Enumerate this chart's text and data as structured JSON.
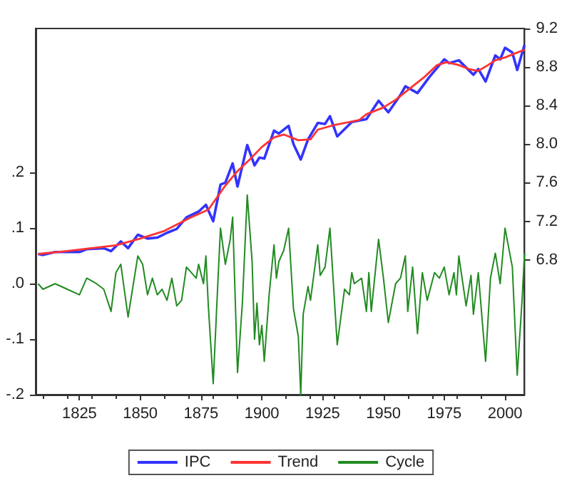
{
  "chart_data": {
    "type": "line",
    "xlim": [
      1807,
      2008
    ],
    "xticks": [
      1825,
      1850,
      1875,
      1900,
      1925,
      1950,
      1975,
      2000
    ],
    "ylim": [
      -0.2,
      0.46
    ],
    "yticks": [
      {
        "value": -0.2,
        "label": "-.2"
      },
      {
        "value": -0.1,
        "label": "-.1"
      },
      {
        "value": 0,
        "label": ".0"
      },
      {
        "value": 0.1,
        "label": ".1"
      },
      {
        "value": 0.2,
        "label": ".2"
      }
    ],
    "y2lim": [
      5.4,
      9.2
    ],
    "y2ticks": [
      6.8,
      7.2,
      7.6,
      {
        "value": 8,
        "label": "8.0"
      },
      8.4,
      8.8,
      9.2
    ],
    "grid": false,
    "legend": "bottom",
    "series": [
      {
        "name": "IPC",
        "color": "#3333ff",
        "axis": "y2",
        "x": [
          1808,
          1810,
          1815,
          1820,
          1825,
          1828,
          1835,
          1838,
          1842,
          1845,
          1849,
          1853,
          1857,
          1861,
          1865,
          1869,
          1874,
          1877,
          1880,
          1883,
          1885,
          1888,
          1890,
          1894,
          1897,
          1899,
          1901,
          1905,
          1907,
          1911,
          1913,
          1916,
          1919,
          1923,
          1926,
          1928,
          1931,
          1937,
          1943,
          1948,
          1952,
          1957,
          1959,
          1964,
          1969,
          1975,
          1977,
          1981,
          1987,
          1989,
          1992,
          1996,
          1998,
          2000,
          2003,
          2005,
          2008
        ],
        "values": [
          6.86,
          6.85,
          6.88,
          6.88,
          6.88,
          6.91,
          6.92,
          6.89,
          6.99,
          6.92,
          7.06,
          7.02,
          7.03,
          7.08,
          7.12,
          7.24,
          7.3,
          7.37,
          7.2,
          7.58,
          7.6,
          7.8,
          7.56,
          7.99,
          7.78,
          7.86,
          7.85,
          8.14,
          8.11,
          8.19,
          8.0,
          7.84,
          8.05,
          8.22,
          8.21,
          8.29,
          8.08,
          8.23,
          8.26,
          8.45,
          8.33,
          8.51,
          8.6,
          8.53,
          8.7,
          8.88,
          8.84,
          8.87,
          8.72,
          8.78,
          8.65,
          8.92,
          8.88,
          9.0,
          8.95,
          8.77,
          9.03
        ]
      },
      {
        "name": "Trend",
        "color": "#ff3333",
        "axis": "y2",
        "x": [
          1808,
          1820,
          1830,
          1840,
          1850,
          1860,
          1870,
          1878,
          1885,
          1890,
          1895,
          1900,
          1905,
          1909,
          1915,
          1920,
          1923,
          1930,
          1940,
          1943,
          1950,
          1955,
          1962,
          1967,
          1972,
          1976,
          1981,
          1985,
          1989,
          1993,
          1996,
          2000,
          2004,
          2008
        ],
        "values": [
          6.86,
          6.89,
          6.92,
          6.95,
          7.02,
          7.1,
          7.23,
          7.32,
          7.57,
          7.72,
          7.84,
          7.97,
          8.07,
          8.1,
          8.04,
          8.05,
          8.15,
          8.2,
          8.25,
          8.31,
          8.38,
          8.46,
          8.6,
          8.7,
          8.82,
          8.85,
          8.82,
          8.78,
          8.76,
          8.82,
          8.87,
          8.9,
          8.94,
          8.98
        ]
      },
      {
        "name": "Cycle",
        "color": "#228b22",
        "x": [
          1808,
          1810,
          1815,
          1820,
          1825,
          1828,
          1832,
          1835,
          1838,
          1840,
          1842,
          1845,
          1849,
          1851,
          1853,
          1855,
          1857,
          1859,
          1861,
          1863,
          1865,
          1867,
          1869,
          1871,
          1873,
          1874,
          1876,
          1877,
          1878,
          1880,
          1882,
          1883,
          1885,
          1887,
          1888,
          1890,
          1892,
          1894,
          1896,
          1897,
          1898,
          1899,
          1900,
          1901,
          1903,
          1905,
          1906,
          1907,
          1909,
          1911,
          1913,
          1915,
          1916,
          1917,
          1919,
          1920,
          1923,
          1924,
          1926,
          1928,
          1931,
          1934,
          1936,
          1937,
          1938,
          1941,
          1943,
          1944,
          1945,
          1948,
          1950,
          1952,
          1955,
          1957,
          1959,
          1960,
          1962,
          1964,
          1966,
          1968,
          1971,
          1973,
          1975,
          1977,
          1979,
          1980,
          1981,
          1984,
          1986,
          1987,
          1989,
          1992,
          1994,
          1996,
          1998,
          2000,
          2003,
          2005,
          2007,
          2008
        ],
        "values": [
          0.0,
          -0.01,
          0.0,
          -0.01,
          -0.02,
          0.01,
          0.0,
          -0.01,
          -0.05,
          0.02,
          0.035,
          -0.06,
          0.05,
          0.035,
          -0.02,
          0.01,
          -0.02,
          -0.01,
          -0.03,
          0.01,
          -0.04,
          -0.03,
          0.03,
          0.02,
          0.01,
          0.035,
          0.0,
          0.05,
          -0.04,
          -0.18,
          0.01,
          0.1,
          0.035,
          0.08,
          0.12,
          -0.16,
          -0.035,
          0.16,
          0.04,
          -0.1,
          -0.035,
          -0.11,
          -0.075,
          -0.14,
          -0.02,
          0.07,
          0.01,
          0.04,
          0.06,
          0.1,
          -0.045,
          -0.095,
          -0.2,
          -0.055,
          -0.005,
          -0.03,
          0.07,
          0.015,
          0.03,
          0.1,
          -0.11,
          -0.01,
          -0.02,
          0.02,
          0.0,
          0.01,
          -0.05,
          0.02,
          -0.05,
          0.08,
          0.01,
          -0.07,
          0.0,
          0.01,
          0.05,
          -0.05,
          0.03,
          -0.09,
          0.02,
          -0.03,
          0.02,
          0.01,
          0.03,
          -0.02,
          0.02,
          -0.02,
          0.05,
          -0.04,
          0.015,
          -0.055,
          0.02,
          -0.14,
          0.01,
          0.055,
          0.0,
          0.1,
          0.03,
          -0.165,
          -0.03,
          0.055
        ]
      }
    ]
  }
}
